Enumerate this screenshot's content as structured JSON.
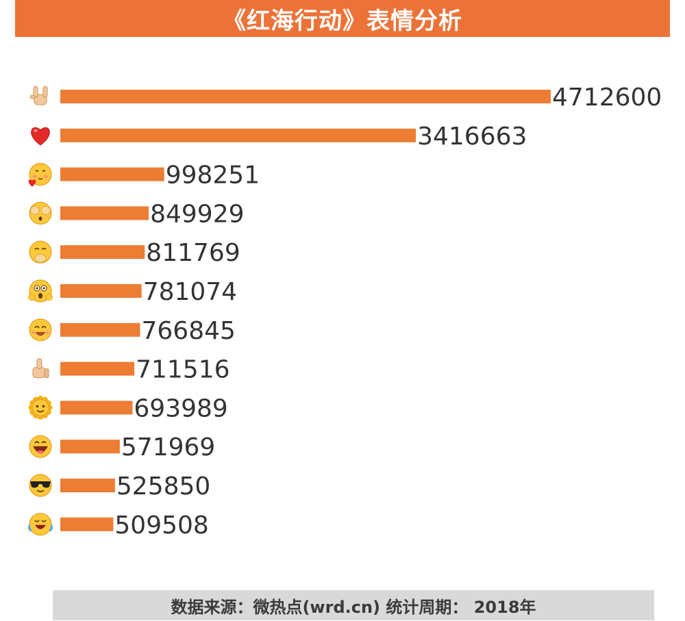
{
  "title": "《红海行动》表情分析",
  "footer": "数据来源：微热点(wrd.cn)  统计周期： 2018年",
  "colors": {
    "accent": "#ec7338",
    "bar": "#ec7d32",
    "label": "#333333",
    "footer_bg": "#d9d9d9"
  },
  "chart_data": {
    "type": "bar",
    "orientation": "horizontal",
    "categories": [
      "rock-on-hand-emoji",
      "red-heart-emoji",
      "love-face-emoji",
      "shy-face-emoji",
      "giggle-face-emoji",
      "shocked-face-emoji",
      "happy-face-emoji",
      "thumbs-up-emoji",
      "sun-face-emoji",
      "laughing-face-emoji",
      "sunglasses-face-emoji",
      "crying-laughing-emoji"
    ],
    "values": [
      4712600,
      3416663,
      998251,
      849929,
      811769,
      781074,
      766845,
      711516,
      693989,
      571969,
      525850,
      509508
    ],
    "xlim": [
      0,
      4712600
    ],
    "grid": false,
    "data_labels": true
  }
}
